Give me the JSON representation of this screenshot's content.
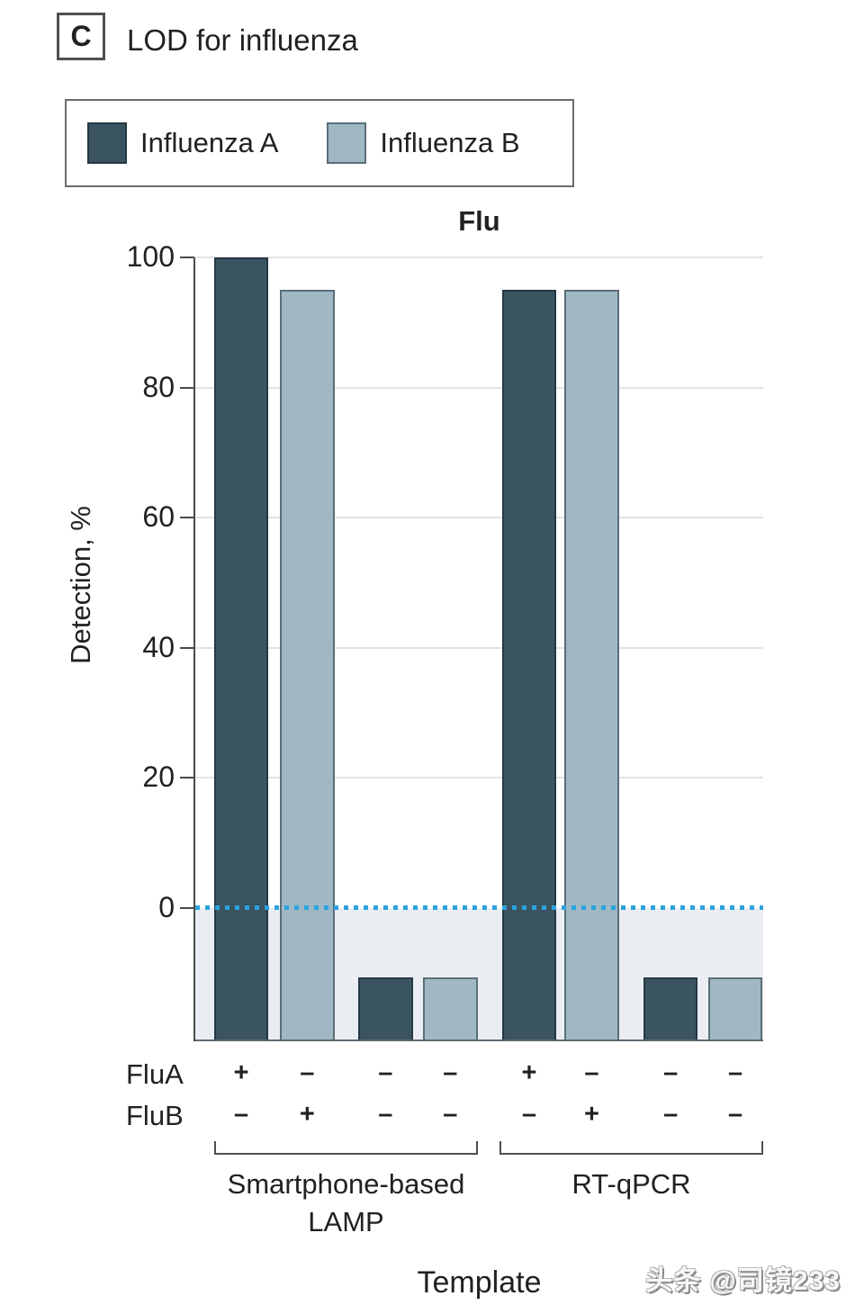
{
  "panel": {
    "label": "C",
    "title": "LOD for influenza"
  },
  "legend": {
    "items": [
      {
        "label": "Influenza A",
        "color": "#3a5462"
      },
      {
        "label": "Influenza B",
        "color": "#9fb8c4"
      }
    ]
  },
  "chart_data": {
    "type": "bar",
    "title": "Flu",
    "ylabel": "Detection, %",
    "xlabel": "Template",
    "yticks": [
      0,
      20,
      40,
      60,
      80,
      100
    ],
    "ylim": [
      -20,
      100
    ],
    "grid": "horizontal-light-gray",
    "zero_line": {
      "value": 0,
      "style": "dotted",
      "color": "#2ba3dd"
    },
    "below_zero_shading": {
      "enabled": true,
      "color": "#eaeef3"
    },
    "series_colors": {
      "Influenza A": "#3a5462",
      "Influenza B": "#9fb8c4"
    },
    "row_labels": [
      "FluA",
      "FluB"
    ],
    "bars": [
      {
        "group": "Smartphone-based LAMP",
        "series": "Influenza A",
        "FluA": "+",
        "FluB": "–",
        "value": 100
      },
      {
        "group": "Smartphone-based LAMP",
        "series": "Influenza B",
        "FluA": "–",
        "FluB": "+",
        "value": 95
      },
      {
        "group": "Smartphone-based LAMP",
        "series": "Influenza A",
        "FluA": "–",
        "FluB": "–",
        "value": 0
      },
      {
        "group": "Smartphone-based LAMP",
        "series": "Influenza B",
        "FluA": "–",
        "FluB": "–",
        "value": 0
      },
      {
        "group": "RT-qPCR",
        "series": "Influenza A",
        "FluA": "+",
        "FluB": "–",
        "value": 95
      },
      {
        "group": "RT-qPCR",
        "series": "Influenza B",
        "FluA": "–",
        "FluB": "+",
        "value": 95
      },
      {
        "group": "RT-qPCR",
        "series": "Influenza A",
        "FluA": "–",
        "FluB": "–",
        "value": 0
      },
      {
        "group": "RT-qPCR",
        "series": "Influenza B",
        "FluA": "–",
        "FluB": "–",
        "value": 0
      }
    ],
    "group_labels": [
      [
        "Smartphone-based",
        "LAMP"
      ],
      [
        "RT-qPCR"
      ]
    ],
    "display_note": "bars with value 0 are drawn as short bars hanging below the dotted 0 line inside the shaded region"
  },
  "watermark": "头条 @司镜233"
}
